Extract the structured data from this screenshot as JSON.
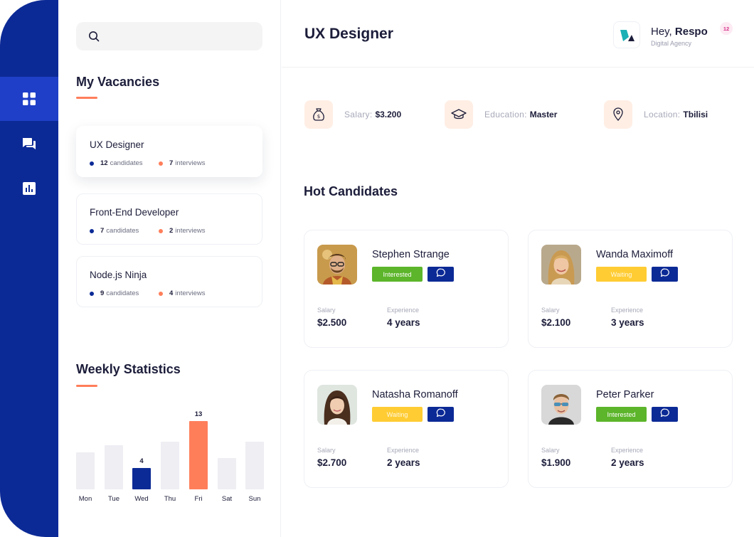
{
  "colors": {
    "rail": "#0c2a96",
    "rail_active": "#1f3fc8",
    "accent": "#ff7e5a",
    "interested": "#5cb52a",
    "waiting": "#ffcc33",
    "bar_default": "#eeeef3"
  },
  "nav": {
    "items": [
      {
        "icon": "grid-icon",
        "active": true
      },
      {
        "icon": "chat-icon",
        "active": false
      },
      {
        "icon": "bar-chart-icon",
        "active": false
      }
    ]
  },
  "search": {
    "placeholder": "",
    "icon": "search-icon"
  },
  "vacancies": {
    "title": "My Vacancies",
    "items": [
      {
        "title": "UX Designer",
        "candidates": "12",
        "candidates_label": "candidates",
        "interviews": "7",
        "interviews_label": "interviews",
        "active": true
      },
      {
        "title": "Front-End Developer",
        "candidates": "7",
        "candidates_label": "candidates",
        "interviews": "2",
        "interviews_label": "interviews",
        "active": false
      },
      {
        "title": "Node.js Ninja",
        "candidates": "9",
        "candidates_label": "candidates",
        "interviews": "4",
        "interviews_label": "interviews",
        "active": false
      }
    ]
  },
  "weekly": {
    "title": "Weekly Statistics"
  },
  "chart_data": {
    "type": "bar",
    "categories": [
      "Mon",
      "Tue",
      "Wed",
      "Thu",
      "Fri",
      "Sat",
      "Sun"
    ],
    "values": [
      7,
      8.4,
      4,
      9.1,
      13,
      6,
      9.1
    ],
    "data_labels": [
      "",
      "",
      "4",
      "",
      "13",
      "",
      ""
    ],
    "highlight": {
      "Wed": "#0c2a96",
      "Fri": "#ff7e5a"
    },
    "title": "Weekly Statistics",
    "xlabel": "",
    "ylabel": "",
    "ylim": [
      0,
      13
    ],
    "grid": false
  },
  "header": {
    "title": "UX Designer",
    "greeting": "Hey,",
    "user": "Respo",
    "agency": "Digital Agency",
    "notifications": "12"
  },
  "info": [
    {
      "icon": "money-bag-icon",
      "label": "Salary:",
      "value": "$3.200"
    },
    {
      "icon": "graduation-cap-icon",
      "label": "Education:",
      "value": "Master"
    },
    {
      "icon": "location-pin-icon",
      "label": "Location:",
      "value": "Tbilisi"
    }
  ],
  "hot": {
    "title": "Hot Candidates",
    "salary_label": "Salary",
    "experience_label": "Experience",
    "candidates": [
      {
        "name": "Stephen Strange",
        "status": "Interested",
        "salary": "$2.500",
        "experience": "4 years"
      },
      {
        "name": "Wanda Maximoff",
        "status": "Waiting",
        "salary": "$2.100",
        "experience": "3 years"
      },
      {
        "name": "Natasha Romanoff",
        "status": "Waiting",
        "salary": "$2.700",
        "experience": "2 years"
      },
      {
        "name": "Peter Parker",
        "status": "Interested",
        "salary": "$1.900",
        "experience": "2 years"
      }
    ]
  }
}
